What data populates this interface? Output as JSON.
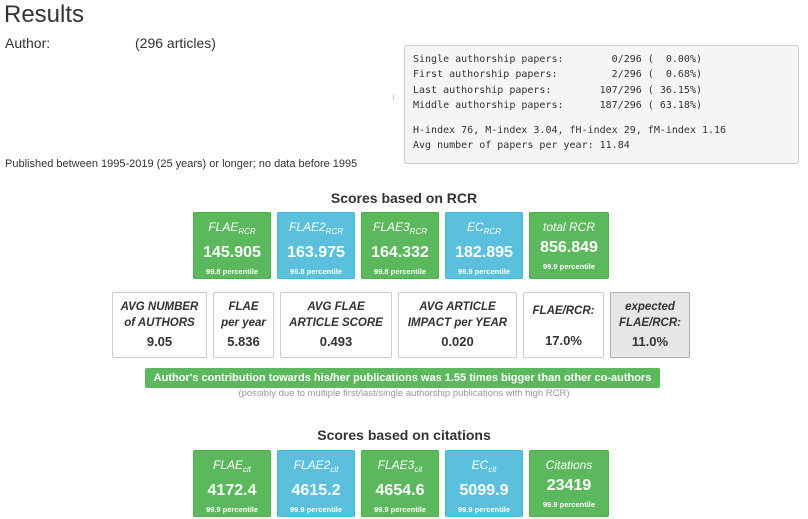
{
  "header": {
    "title": "Results",
    "author_label": "Author:",
    "article_count": "(296 articles)",
    "published_note": "Published between 1995-2019 (25 years) or longer; no data before 1995"
  },
  "stats": {
    "lines": [
      "Single authorship papers:        0/296 (  0.00%)",
      "First authorship papers:         2/296 (  0.68%)",
      "Last authorship papers:        107/296 ( 36.15%)",
      "Middle authorship papers:      187/296 ( 63.18%)"
    ],
    "index_line": "H-index 76, M-index 3.04, fH-index 29, fM-index 1.16",
    "avg_line": "Avg number of papers per year: 11.84"
  },
  "rcr": {
    "heading": "Scores based on RCR",
    "cards": [
      {
        "name": "FLAE",
        "sub": "RCR",
        "value": "145.905",
        "percentile": "99.8 percentile",
        "color": "green"
      },
      {
        "name": "FLAE2",
        "sub": "RCR",
        "value": "163.975",
        "percentile": "99.8 percentile",
        "color": "blue"
      },
      {
        "name": "FLAE3",
        "sub": "RCR",
        "value": "164.332",
        "percentile": "99.8 percentile",
        "color": "green"
      },
      {
        "name": "EC",
        "sub": "RCR",
        "value": "182.895",
        "percentile": "99.9 percentile",
        "color": "blue"
      },
      {
        "name": "total RCR",
        "sub": "",
        "value": "856.849",
        "percentile": "99.9 percentile",
        "color": "green"
      }
    ]
  },
  "metrics": [
    {
      "line1": "AVG NUMBER",
      "line2": "of AUTHORS",
      "value": "9.05"
    },
    {
      "line1": "FLAE",
      "line2": "per year",
      "value": "5.836"
    },
    {
      "line1": "AVG FLAE",
      "line2": "ARTICLE SCORE",
      "value": "0.493"
    },
    {
      "line1": "AVG ARTICLE",
      "line2": "IMPACT per YEAR",
      "value": "0.020"
    },
    {
      "line1": "FLAE/RCR:",
      "line2": "",
      "value": "17.0%"
    },
    {
      "line1": "expected",
      "line2": "FLAE/RCR:",
      "value": "11.0%"
    }
  ],
  "banner": {
    "text": "Author's contribution towards his/her publications was 1.55 times bigger than other co-authors",
    "note": "(possibly due to multiple first/last/single authorship publications with high RCR)"
  },
  "citations": {
    "heading": "Scores based on citations",
    "cards": [
      {
        "name": "FLAE",
        "sub": "cit",
        "value": "4172.4",
        "percentile": "99.9 percentile",
        "color": "green"
      },
      {
        "name": "FLAE2",
        "sub": "cit",
        "value": "4615.2",
        "percentile": "99.9 percentile",
        "color": "blue"
      },
      {
        "name": "FLAE3",
        "sub": "cit",
        "value": "4654.6",
        "percentile": "99.9 percentile",
        "color": "green"
      },
      {
        "name": "EC",
        "sub": "cit",
        "value": "5099.9",
        "percentile": "99.9 percentile",
        "color": "blue"
      },
      {
        "name": "Citations",
        "sub": "",
        "value": "23419",
        "percentile": "99.9 percentile",
        "color": "green"
      }
    ]
  },
  "colors": {
    "green": "#5cb85c",
    "blue": "#5bc0de",
    "grey": "#e6e6e6"
  }
}
